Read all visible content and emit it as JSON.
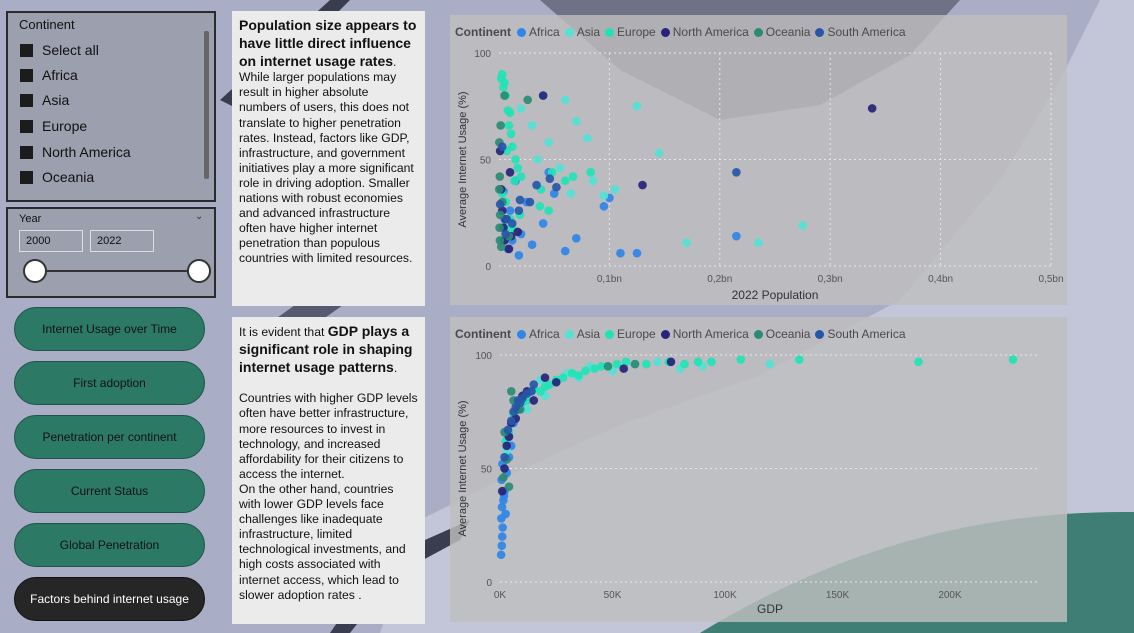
{
  "colors": {
    "Africa": "#2f86e8",
    "Asia": "#52e2d6",
    "Europe": "#1fe3b6",
    "North America": "#26237a",
    "Oceania": "#2b8a73",
    "South America": "#2656a8"
  },
  "continent_slicer": {
    "title": "Continent",
    "items": [
      "Select all",
      "Africa",
      "Asia",
      "Europe",
      "North America",
      "Oceania"
    ]
  },
  "year_slicer": {
    "title": "Year",
    "from": "2000",
    "to": "2022"
  },
  "nav": [
    "Internet Usage over Time",
    "First adoption",
    "Penetration per continent",
    "Current Status",
    "Global Penetration",
    "Factors behind internet usage"
  ],
  "active_nav": "Factors behind internet usage",
  "text1": {
    "heading": "Population size appears to have little direct influence on internet usage rates",
    "heading_end": ".",
    "body": "While larger populations may result in higher absolute numbers of users, this does not translate to higher penetration rates. Instead, factors like GDP, infrastructure, and government initiatives play a more significant role in driving adoption. Smaller nations with robust economies and advanced infrastructure often have higher internet penetration than populous countries with limited resources."
  },
  "text2": {
    "lead": "It is evident that ",
    "heading": "GDP plays a significant role in shaping internet usage patterns",
    "heading_end": ".",
    "p1": "Countries with higher GDP levels often have better infrastructure, more resources to invest in technology, and increased affordability for their citizens to access the internet.",
    "p2": "On the other hand, countries with lower GDP levels face challenges like inadequate infrastructure, limited technological investments, and high costs associated with internet access, which lead to slower adoption rates ."
  },
  "chart_data": [
    {
      "type": "scatter",
      "legend_title": "Continent",
      "legend": [
        "Africa",
        "Asia",
        "Europe",
        "North America",
        "Oceania",
        "South America"
      ],
      "xlabel": "2022 Population",
      "ylabel": "Average Internet Usage (%)",
      "xlim": [
        0,
        500000000
      ],
      "ylim": [
        0,
        100
      ],
      "x_ticks": [
        "0,1bn",
        "0,2bn",
        "0,3bn",
        "0,4bn",
        "0,5bn"
      ],
      "y_ticks": [
        "0",
        "50",
        "100"
      ],
      "series": [
        {
          "name": "Africa",
          "points": [
            [
              8000000,
              8
            ],
            [
              12000000,
              12
            ],
            [
              20000000,
              15
            ],
            [
              5000000,
              22
            ],
            [
              30000000,
              10
            ],
            [
              60000000,
              7
            ],
            [
              110000000,
              6
            ],
            [
              125000000,
              6
            ],
            [
              215000000,
              14
            ],
            [
              100000000,
              32
            ],
            [
              95000000,
              28
            ],
            [
              50000000,
              34
            ],
            [
              25000000,
              30
            ],
            [
              15000000,
              40
            ],
            [
              40000000,
              20
            ],
            [
              70000000,
              13
            ],
            [
              18000000,
              5
            ],
            [
              4000000,
              35
            ],
            [
              45000000,
              44
            ],
            [
              10000000,
              26
            ]
          ]
        },
        {
          "name": "Asia",
          "points": [
            [
              40000000,
              80
            ],
            [
              60000000,
              78
            ],
            [
              80000000,
              60
            ],
            [
              125000000,
              75
            ],
            [
              145000000,
              53
            ],
            [
              275000000,
              19
            ],
            [
              235000000,
              11
            ],
            [
              170000000,
              11
            ],
            [
              95000000,
              33
            ],
            [
              105000000,
              36
            ],
            [
              30000000,
              66
            ],
            [
              45000000,
              58
            ],
            [
              70000000,
              68
            ],
            [
              55000000,
              46
            ],
            [
              85000000,
              40
            ],
            [
              20000000,
              74
            ],
            [
              35000000,
              50
            ],
            [
              65000000,
              34
            ]
          ]
        },
        {
          "name": "Europe",
          "points": [
            [
              3000000,
              90
            ],
            [
              5000000,
              86
            ],
            [
              6000000,
              80
            ],
            [
              8000000,
              73
            ],
            [
              10000000,
              72
            ],
            [
              4000000,
              84
            ],
            [
              2000000,
              88
            ],
            [
              9000000,
              66
            ],
            [
              11000000,
              62
            ],
            [
              12000000,
              56
            ],
            [
              15000000,
              50
            ],
            [
              7000000,
              54
            ],
            [
              17000000,
              46
            ],
            [
              14000000,
              40
            ],
            [
              3000000,
              34
            ],
            [
              6000000,
              30
            ],
            [
              20000000,
              42
            ],
            [
              38000000,
              36
            ],
            [
              48000000,
              44
            ],
            [
              60000000,
              40
            ],
            [
              67000000,
              42
            ],
            [
              83000000,
              44
            ],
            [
              45000000,
              26
            ],
            [
              37000000,
              28
            ],
            [
              10000000,
              22
            ],
            [
              19000000,
              24
            ],
            [
              5000000,
              18
            ],
            [
              8000000,
              14
            ],
            [
              2000000,
              12
            ],
            [
              12000000,
              18
            ]
          ]
        },
        {
          "name": "North America",
          "points": [
            [
              338000000,
              74
            ],
            [
              130000000,
              38
            ],
            [
              40000000,
              80
            ],
            [
              10000000,
              44
            ],
            [
              6000000,
              22
            ],
            [
              11000000,
              14
            ],
            [
              4000000,
              18
            ],
            [
              9000000,
              8
            ],
            [
              3000000,
              26
            ],
            [
              17000000,
              16
            ],
            [
              2000000,
              36
            ],
            [
              5000000,
              12
            ],
            [
              1000000,
              54
            ]
          ]
        },
        {
          "name": "Oceania",
          "points": [
            [
              26000000,
              78
            ],
            [
              5000000,
              80
            ],
            [
              9000000,
              14
            ],
            [
              1000000,
              24
            ],
            [
              2000000,
              9
            ],
            [
              3000000,
              30
            ],
            [
              500000,
              18
            ],
            [
              700000,
              42
            ],
            [
              300000,
              58
            ],
            [
              1500000,
              66
            ],
            [
              200000,
              36
            ],
            [
              800000,
              12
            ]
          ]
        },
        {
          "name": "South America",
          "points": [
            [
              215000000,
              44
            ],
            [
              52000000,
              37
            ],
            [
              46000000,
              41
            ],
            [
              34000000,
              38
            ],
            [
              28000000,
              30
            ],
            [
              19000000,
              31
            ],
            [
              18000000,
              26
            ],
            [
              12000000,
              20
            ],
            [
              7000000,
              22
            ],
            [
              6000000,
              15
            ],
            [
              3000000,
              56
            ],
            [
              1000000,
              29
            ]
          ]
        }
      ]
    },
    {
      "type": "scatter",
      "legend_title": "Continent",
      "legend": [
        "Africa",
        "Asia",
        "Europe",
        "North America",
        "Oceania",
        "South America"
      ],
      "xlabel": "GDP",
      "ylabel": "Average Internet Usage (%)",
      "xlim": [
        0,
        240000
      ],
      "ylim": [
        0,
        100
      ],
      "x_ticks": [
        "0K",
        "50K",
        "100K",
        "150K",
        "200K"
      ],
      "y_ticks": [
        "0",
        "50",
        "100"
      ],
      "series": [
        {
          "name": "Africa",
          "points": [
            [
              500,
              12
            ],
            [
              800,
              16
            ],
            [
              1000,
              20
            ],
            [
              1200,
              24
            ],
            [
              600,
              28
            ],
            [
              900,
              33
            ],
            [
              1500,
              36
            ],
            [
              2000,
              40
            ],
            [
              700,
              45
            ],
            [
              1800,
              38
            ],
            [
              2500,
              30
            ],
            [
              3000,
              48
            ],
            [
              1100,
              52
            ],
            [
              4000,
              55
            ],
            [
              5000,
              60
            ],
            [
              3500,
              64
            ],
            [
              6000,
              70
            ]
          ]
        },
        {
          "name": "Asia",
          "points": [
            [
              40000,
              95
            ],
            [
              60000,
              96
            ],
            [
              90000,
              95
            ],
            [
              120000,
              96
            ],
            [
              25000,
              88
            ],
            [
              15000,
              85
            ],
            [
              8000,
              80
            ],
            [
              12000,
              76
            ],
            [
              20000,
              82
            ],
            [
              30000,
              92
            ],
            [
              50000,
              93
            ],
            [
              70000,
              97
            ],
            [
              80000,
              94
            ],
            [
              5000,
              70
            ],
            [
              3000,
              58
            ],
            [
              18000,
              89
            ],
            [
              35000,
              90
            ]
          ]
        },
        {
          "name": "Europe",
          "points": [
            [
              228000,
              98
            ],
            [
              186000,
              97
            ],
            [
              133000,
              98
            ],
            [
              107000,
              98
            ],
            [
              94000,
              97
            ],
            [
              88000,
              97
            ],
            [
              82000,
              96
            ],
            [
              75000,
              97
            ],
            [
              65000,
              96
            ],
            [
              56000,
              97
            ],
            [
              52000,
              96
            ],
            [
              48000,
              95
            ],
            [
              45000,
              95
            ],
            [
              42000,
              94
            ],
            [
              38000,
              93
            ],
            [
              35000,
              91
            ],
            [
              32000,
              92
            ],
            [
              28000,
              90
            ],
            [
              25000,
              89
            ],
            [
              22000,
              87
            ],
            [
              20000,
              86
            ],
            [
              18000,
              84
            ],
            [
              15000,
              85
            ],
            [
              12000,
              80
            ],
            [
              10000,
              79
            ],
            [
              8000,
              77
            ],
            [
              6000,
              74
            ],
            [
              4000,
              66
            ],
            [
              2500,
              62
            ]
          ]
        },
        {
          "name": "North America",
          "points": [
            [
              76000,
              97
            ],
            [
              55000,
              94
            ],
            [
              20000,
              90
            ],
            [
              10000,
              82
            ],
            [
              8000,
              76
            ],
            [
              5000,
              70
            ],
            [
              3000,
              60
            ],
            [
              2000,
              50
            ],
            [
              1000,
              40
            ],
            [
              15000,
              80
            ],
            [
              12000,
              84
            ],
            [
              7000,
              72
            ],
            [
              25000,
              88
            ],
            [
              4000,
              64
            ]
          ]
        },
        {
          "name": "Oceania",
          "points": [
            [
              60000,
              96
            ],
            [
              48000,
              95
            ],
            [
              5000,
              84
            ],
            [
              3000,
              54
            ],
            [
              4000,
              42
            ],
            [
              2000,
              66
            ],
            [
              1500,
              46
            ],
            [
              9000,
              76
            ],
            [
              6000,
              80
            ]
          ]
        },
        {
          "name": "South America",
          "points": [
            [
              15000,
              87
            ],
            [
              14000,
              84
            ],
            [
              12000,
              83
            ],
            [
              10000,
              81
            ],
            [
              9000,
              79
            ],
            [
              7000,
              77
            ],
            [
              6000,
              75
            ],
            [
              5000,
              71
            ],
            [
              3500,
              67
            ],
            [
              2000,
              55
            ],
            [
              8000,
              80
            ]
          ]
        }
      ]
    }
  ]
}
